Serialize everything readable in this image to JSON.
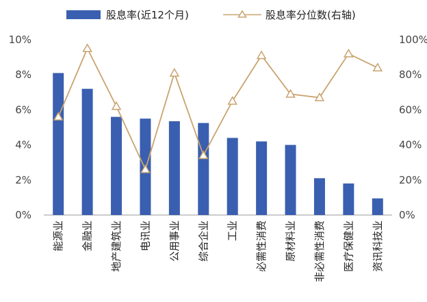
{
  "chart_data": {
    "type": "bar+line",
    "title": "",
    "categories": [
      "能源业",
      "金融业",
      "地产建筑业",
      "电讯业",
      "公用事业",
      "综合企业",
      "工业",
      "必需性消费",
      "原材料业",
      "非必需性消费",
      "医疗保健业",
      "资讯科技业"
    ],
    "series": [
      {
        "name": "股息率(近12个月)",
        "type": "bar",
        "axis": "left",
        "color": "#3a5fb0",
        "values": [
          8.1,
          7.2,
          5.6,
          5.5,
          5.35,
          5.25,
          4.4,
          4.2,
          4.0,
          2.1,
          1.8,
          0.95
        ]
      },
      {
        "name": "股息率分位数(右轴)",
        "type": "line",
        "axis": "right",
        "color": "#c9a36e",
        "marker": "triangle",
        "values": [
          56,
          95,
          62,
          26,
          81,
          34,
          65,
          91,
          69,
          67,
          92,
          84
        ]
      }
    ],
    "left_axis": {
      "min": 0,
      "max": 10,
      "step": 2,
      "unit": "%",
      "tick_labels": [
        "0%",
        "2%",
        "4%",
        "6%",
        "8%",
        "10%"
      ]
    },
    "right_axis": {
      "min": 0,
      "max": 100,
      "step": 20,
      "unit": "%",
      "tick_labels": [
        "0%",
        "20%",
        "40%",
        "60%",
        "80%",
        "100%"
      ]
    },
    "legend_position": "top-center",
    "grid": false
  }
}
